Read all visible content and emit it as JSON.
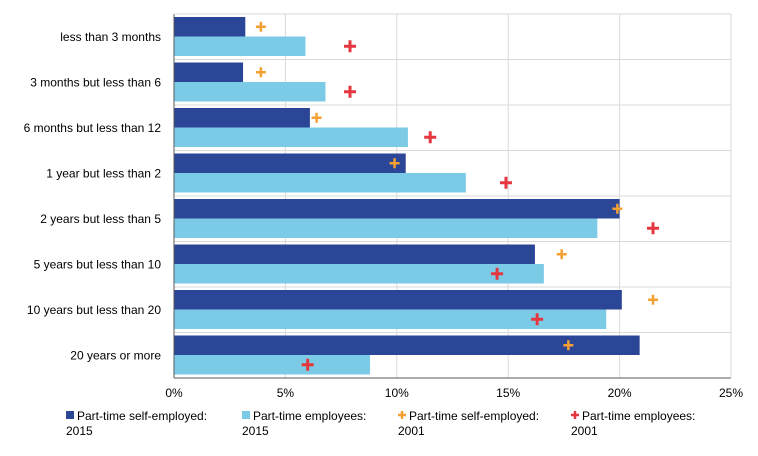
{
  "chart_data": {
    "type": "bar",
    "orientation": "horizontal",
    "categories": [
      "less than 3 months",
      "3 months but less than 6",
      "6 months but less than 12",
      "1 year but less than 2",
      "2 years but less than 5",
      "5 years but less than 10",
      "10 years but less than 20",
      "20 years or more"
    ],
    "series": [
      {
        "name": [
          "Part-time self-employed:",
          "2015"
        ],
        "kind": "bar",
        "color": "#2B4597",
        "values": [
          3.2,
          3.1,
          6.1,
          10.4,
          20.0,
          16.2,
          20.1,
          20.9
        ]
      },
      {
        "name": [
          "Part-time employees:",
          "2015"
        ],
        "kind": "bar",
        "color": "#7CCBE6",
        "values": [
          5.9,
          6.8,
          10.5,
          13.1,
          19.0,
          16.6,
          19.4,
          8.8
        ]
      },
      {
        "name": [
          "Part-time self-employed:",
          "2001"
        ],
        "kind": "marker",
        "color": "#F5A033",
        "values": [
          3.9,
          3.9,
          6.4,
          9.9,
          19.9,
          17.4,
          21.5,
          17.7
        ]
      },
      {
        "name": [
          "Part-time employees:",
          "2001"
        ],
        "kind": "marker",
        "color": "#E5373F",
        "values": [
          7.9,
          7.9,
          11.5,
          14.9,
          21.5,
          14.5,
          16.3,
          6.0
        ]
      }
    ],
    "xticks": [
      "0%",
      "5%",
      "10%",
      "15%",
      "20%",
      "25%"
    ],
    "xlim": [
      0,
      25
    ],
    "grid": true,
    "legend": "bottom"
  }
}
